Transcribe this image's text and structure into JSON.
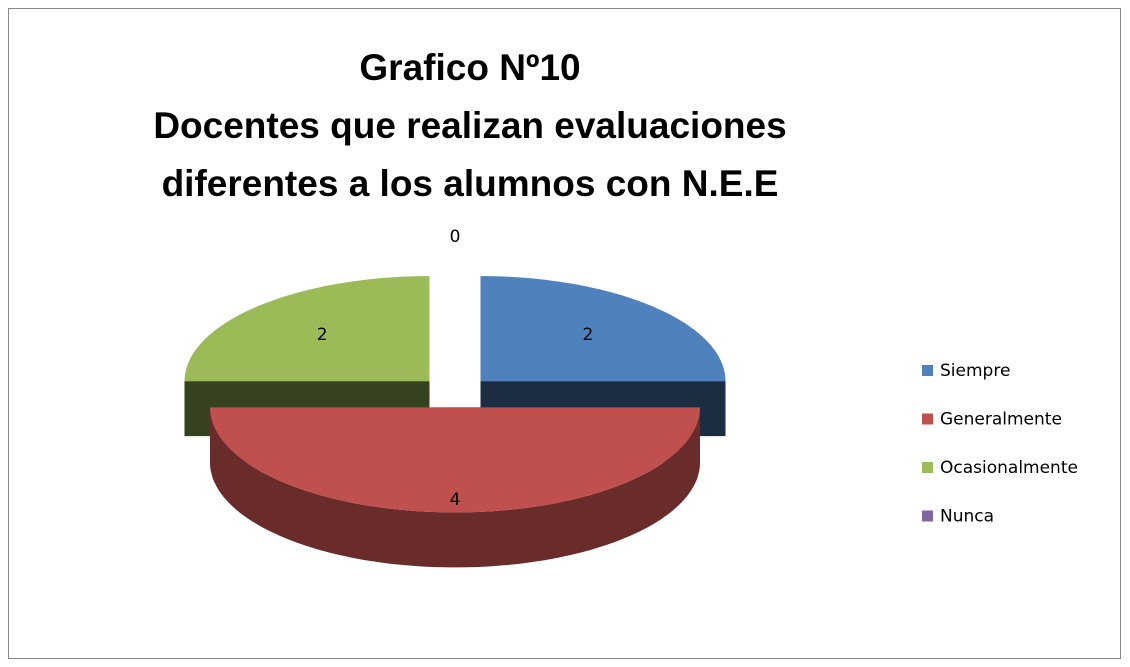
{
  "chart_data": {
    "type": "pie3d",
    "title": [
      "Grafico Nº10",
      "Docentes que realizan evaluaciones",
      "diferentes a los alumnos con N.E.E"
    ],
    "categories": [
      "Siempre",
      "Generalmente",
      "Ocasionalmente",
      "Nunca"
    ],
    "values": [
      2,
      4,
      2,
      0
    ],
    "colors": [
      "#4f81bd",
      "#c0504d",
      "#9bbb59",
      "#8064a2"
    ],
    "legend": "right"
  }
}
